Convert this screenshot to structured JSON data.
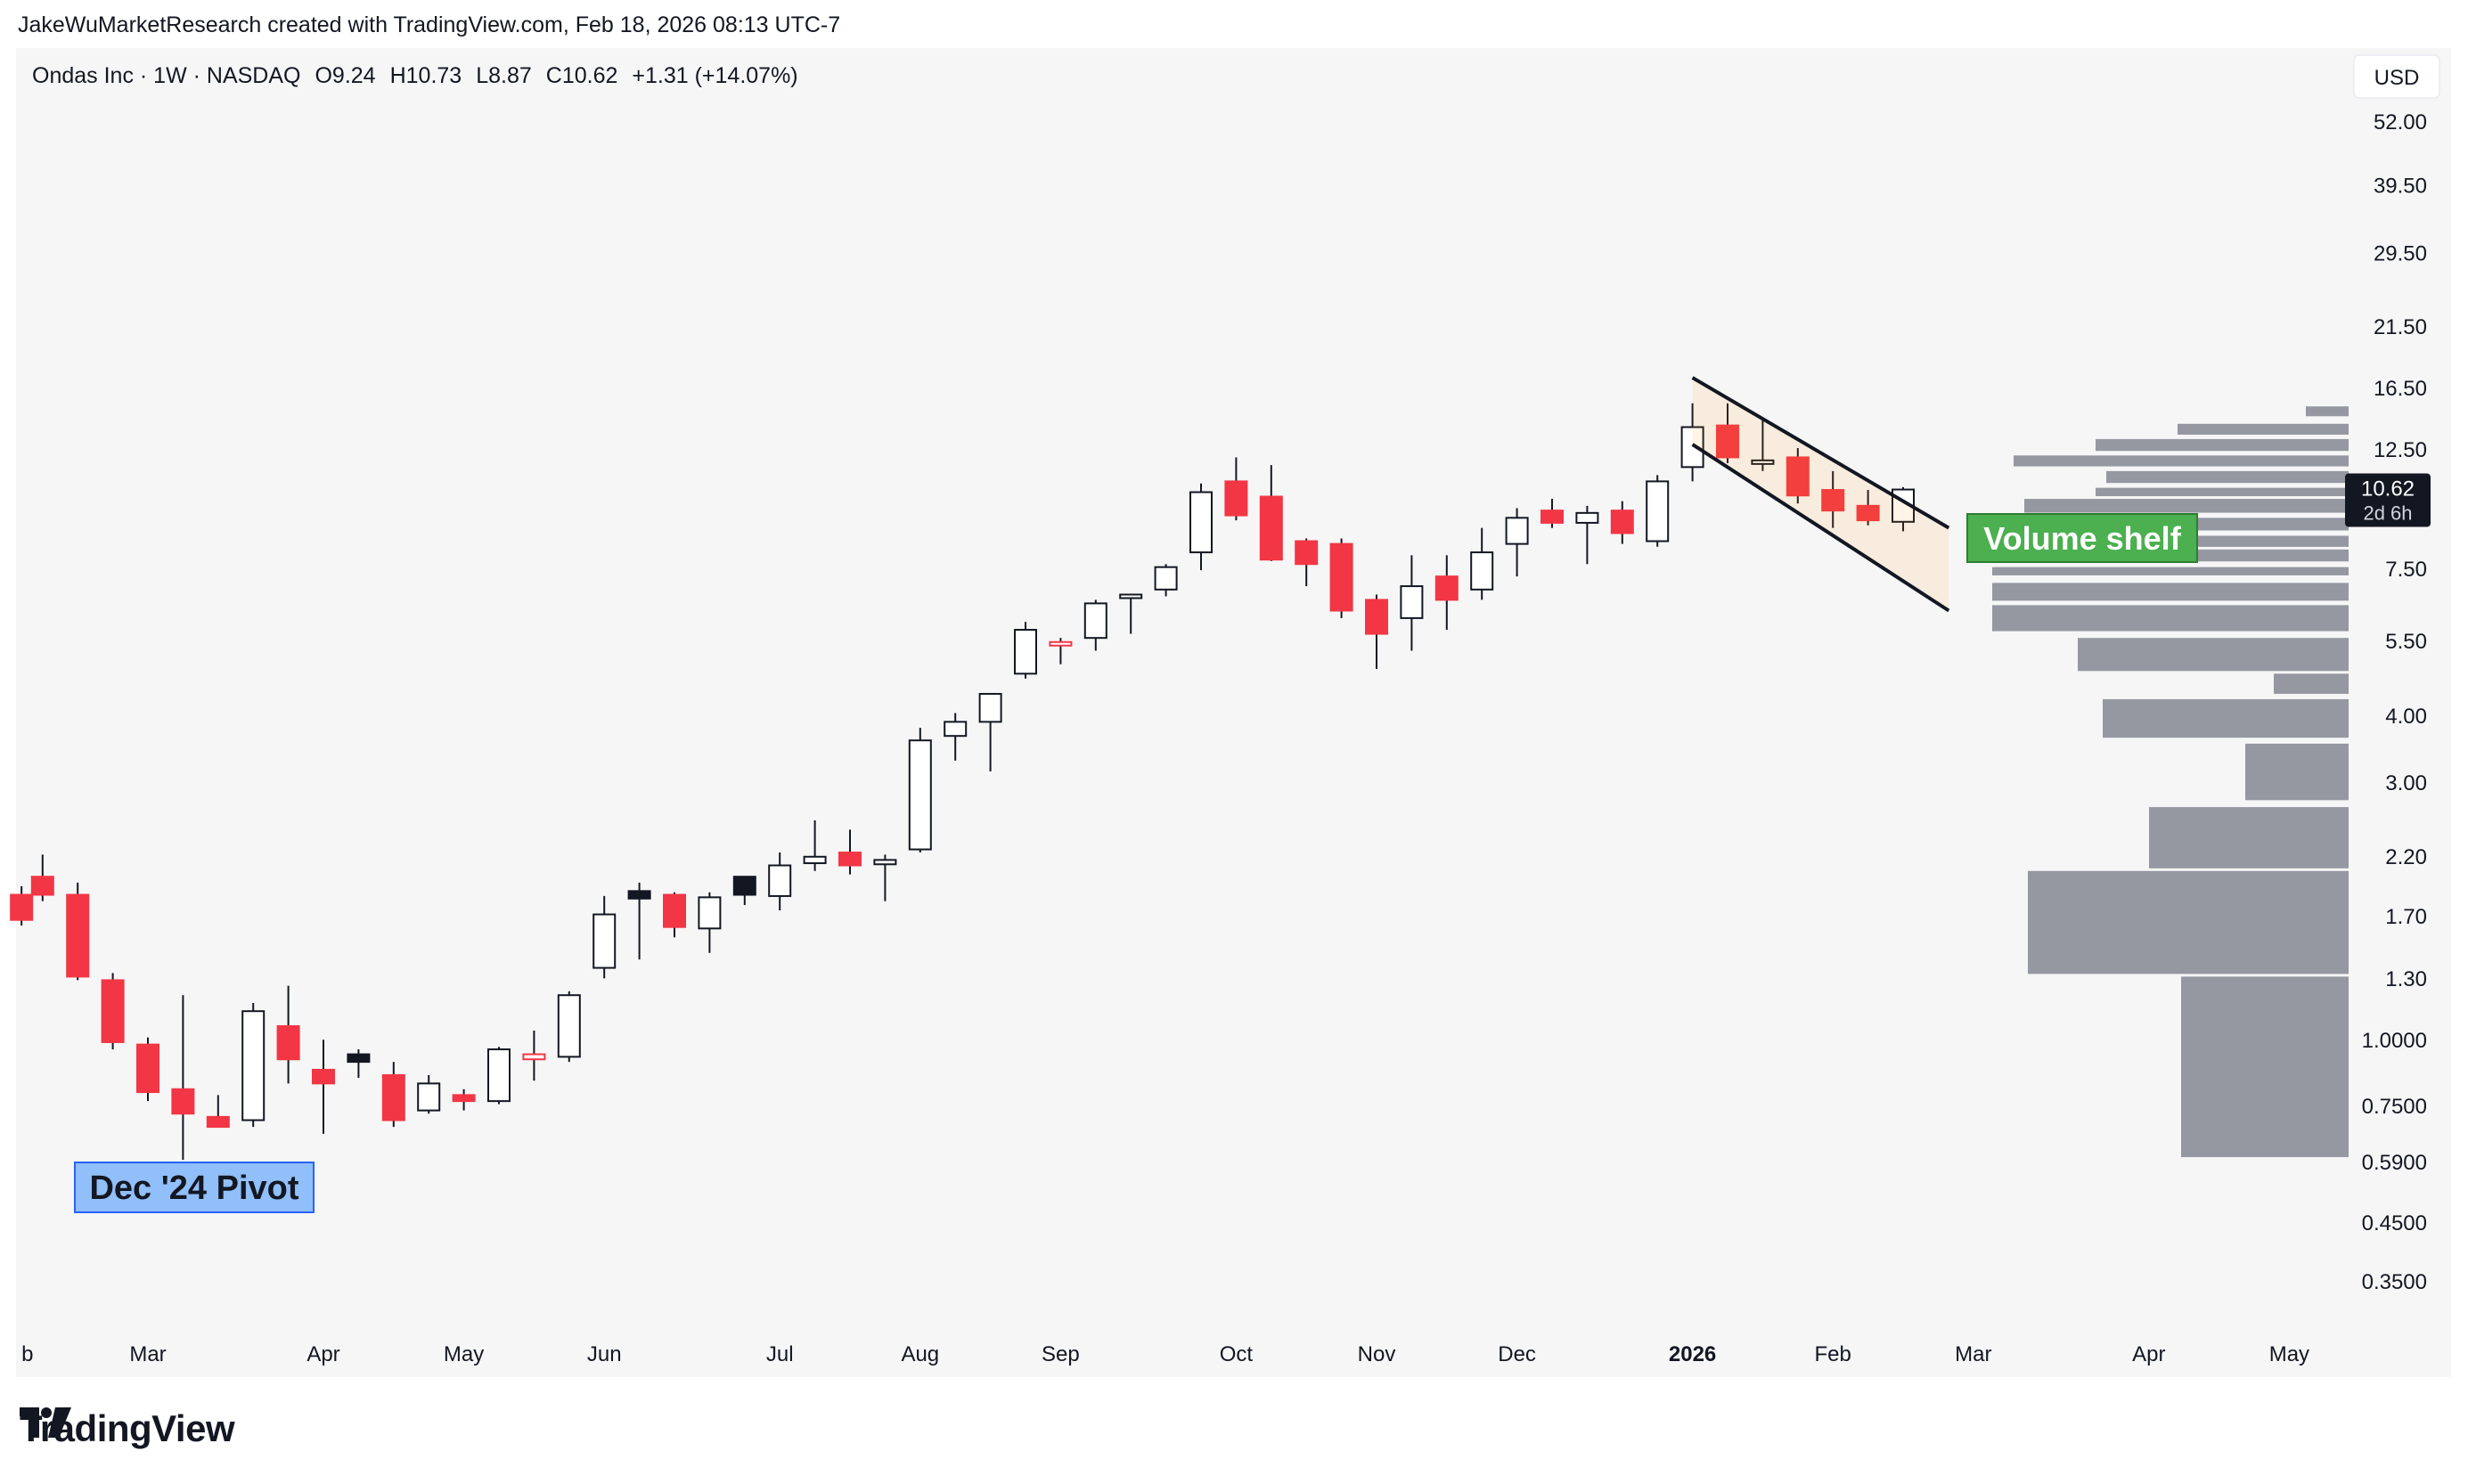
{
  "credit": "JakeWuMarketResearch created with TradingView.com, Feb 18, 2026 08:13 UTC-7",
  "header": {
    "symbol": "Ondas Inc · 1W · NASDAQ",
    "open": "O9.24",
    "high": "H10.73",
    "low": "L8.87",
    "close": "C10.62",
    "change": "+1.31 (+14.07%)"
  },
  "currency_button": "USD",
  "last_price": {
    "value": "10.62",
    "countdown": "2d 6h"
  },
  "annotations": {
    "pivot": "Dec '24 Pivot",
    "shelf": "Volume shelf"
  },
  "brand": "TradingView",
  "colors": {
    "up": "#ffffff",
    "down": "#f23645",
    "wick": "#131722",
    "volume": "#9598a1",
    "pivot_bg": "#90bff9",
    "shelf_bg": "#4caf50"
  },
  "chart_data": {
    "type": "candlestick",
    "title": "Ondas Inc · 1W · NASDAQ",
    "scale": "log",
    "ylim": [
      0.3,
      60
    ],
    "y_ticks": [
      "52.00",
      "39.50",
      "29.50",
      "21.50",
      "16.50",
      "12.50",
      "7.50",
      "5.50",
      "4.00",
      "3.00",
      "2.20",
      "1.70",
      "1.30",
      "1.0000",
      "0.7500",
      "0.5900",
      "0.4500",
      "0.3500"
    ],
    "x_labels": [
      {
        "label": "b",
        "week": -3.6
      },
      {
        "label": "Mar",
        "week": 0
      },
      {
        "label": "Apr",
        "week": 5
      },
      {
        "label": "May",
        "week": 9
      },
      {
        "label": "Jun",
        "week": 13
      },
      {
        "label": "Jul",
        "week": 18
      },
      {
        "label": "Aug",
        "week": 22
      },
      {
        "label": "Sep",
        "week": 26
      },
      {
        "label": "Oct",
        "week": 31
      },
      {
        "label": "Nov",
        "week": 35
      },
      {
        "label": "Dec",
        "week": 39
      },
      {
        "label": "2026",
        "week": 44
      },
      {
        "label": "Feb",
        "week": 48
      },
      {
        "label": "Mar",
        "week": 52
      },
      {
        "label": "Apr",
        "week": 57
      },
      {
        "label": "May",
        "week": 61
      }
    ],
    "candles": [
      {
        "w": -3.6,
        "o": 1.85,
        "h": 1.92,
        "l": 1.62,
        "c": 1.66
      },
      {
        "w": -3,
        "o": 2.0,
        "h": 2.2,
        "l": 1.8,
        "c": 1.85
      },
      {
        "w": -2,
        "o": 1.85,
        "h": 1.95,
        "l": 1.28,
        "c": 1.3
      },
      {
        "w": -1,
        "o": 1.28,
        "h": 1.32,
        "l": 0.95,
        "c": 0.98
      },
      {
        "w": 0,
        "o": 0.97,
        "h": 1.0,
        "l": 0.76,
        "c": 0.79
      },
      {
        "w": 1,
        "o": 0.8,
        "h": 1.2,
        "l": 0.59,
        "c": 0.72
      },
      {
        "w": 2,
        "o": 0.71,
        "h": 0.78,
        "l": 0.68,
        "c": 0.68
      },
      {
        "w": 3,
        "o": 0.7,
        "h": 1.16,
        "l": 0.68,
        "c": 1.12
      },
      {
        "w": 4,
        "o": 1.05,
        "h": 1.25,
        "l": 0.82,
        "c": 0.91
      },
      {
        "w": 5,
        "o": 0.87,
        "h": 0.99,
        "l": 0.66,
        "c": 0.82
      },
      {
        "w": 6,
        "o": 0.9,
        "h": 0.95,
        "l": 0.84,
        "c": 0.93,
        "black": true
      },
      {
        "w": 7,
        "o": 0.85,
        "h": 0.9,
        "l": 0.68,
        "c": 0.7
      },
      {
        "w": 8,
        "o": 0.73,
        "h": 0.85,
        "l": 0.72,
        "c": 0.82
      },
      {
        "w": 9,
        "o": 0.78,
        "h": 0.8,
        "l": 0.73,
        "c": 0.76
      },
      {
        "w": 10,
        "o": 0.76,
        "h": 0.96,
        "l": 0.75,
        "c": 0.95
      },
      {
        "w": 11,
        "o": 0.93,
        "h": 1.03,
        "l": 0.83,
        "c": 0.91,
        "pink": true
      },
      {
        "w": 12,
        "o": 0.92,
        "h": 1.22,
        "l": 0.9,
        "c": 1.2
      },
      {
        "w": 13,
        "o": 1.35,
        "h": 1.84,
        "l": 1.29,
        "c": 1.7
      },
      {
        "w": 14,
        "o": 1.82,
        "h": 1.95,
        "l": 1.4,
        "c": 1.88,
        "black": true
      },
      {
        "w": 15,
        "o": 1.85,
        "h": 1.87,
        "l": 1.54,
        "c": 1.61
      },
      {
        "w": 16,
        "o": 1.6,
        "h": 1.87,
        "l": 1.44,
        "c": 1.83
      },
      {
        "w": 17,
        "o": 1.85,
        "h": 2.0,
        "l": 1.77,
        "c": 2.0,
        "black": true
      },
      {
        "w": 18,
        "o": 1.84,
        "h": 2.22,
        "l": 1.73,
        "c": 2.1
      },
      {
        "w": 19,
        "o": 2.12,
        "h": 2.55,
        "l": 2.05,
        "c": 2.18
      },
      {
        "w": 20,
        "o": 2.22,
        "h": 2.45,
        "l": 2.02,
        "c": 2.1
      },
      {
        "w": 21,
        "o": 2.11,
        "h": 2.2,
        "l": 1.8,
        "c": 2.15
      },
      {
        "w": 22,
        "o": 2.25,
        "h": 3.8,
        "l": 2.22,
        "c": 3.6
      },
      {
        "w": 23,
        "o": 3.67,
        "h": 4.05,
        "l": 3.3,
        "c": 3.9
      },
      {
        "w": 24,
        "o": 3.9,
        "h": 4.4,
        "l": 3.15,
        "c": 4.4
      },
      {
        "w": 25,
        "o": 4.8,
        "h": 6.0,
        "l": 4.7,
        "c": 5.8
      },
      {
        "w": 26,
        "o": 5.5,
        "h": 5.6,
        "l": 5.0,
        "c": 5.42,
        "pink": true
      },
      {
        "w": 27,
        "o": 5.6,
        "h": 6.6,
        "l": 5.3,
        "c": 6.5
      },
      {
        "w": 28,
        "o": 6.7,
        "h": 6.75,
        "l": 5.7,
        "c": 6.7
      },
      {
        "w": 29,
        "o": 6.9,
        "h": 7.7,
        "l": 6.7,
        "c": 7.6
      },
      {
        "w": 30,
        "o": 8.1,
        "h": 10.9,
        "l": 7.5,
        "c": 10.5
      },
      {
        "w": 31,
        "o": 11.0,
        "h": 12.2,
        "l": 9.3,
        "c": 9.5
      },
      {
        "w": 32,
        "o": 10.3,
        "h": 11.8,
        "l": 7.8,
        "c": 7.85
      },
      {
        "w": 33,
        "o": 8.5,
        "h": 8.6,
        "l": 7.0,
        "c": 7.7
      },
      {
        "w": 34,
        "o": 8.4,
        "h": 8.6,
        "l": 6.1,
        "c": 6.3
      },
      {
        "w": 35,
        "o": 6.6,
        "h": 6.75,
        "l": 4.9,
        "c": 5.7
      },
      {
        "w": 36,
        "o": 6.1,
        "h": 8.0,
        "l": 5.3,
        "c": 7.0
      },
      {
        "w": 37,
        "o": 7.3,
        "h": 8.0,
        "l": 5.8,
        "c": 6.6
      },
      {
        "w": 38,
        "o": 6.9,
        "h": 9.0,
        "l": 6.6,
        "c": 8.1
      },
      {
        "w": 39,
        "o": 8.4,
        "h": 9.8,
        "l": 7.3,
        "c": 9.4
      },
      {
        "w": 40,
        "o": 9.7,
        "h": 10.2,
        "l": 9.0,
        "c": 9.2
      },
      {
        "w": 41,
        "o": 9.2,
        "h": 9.9,
        "l": 7.7,
        "c": 9.6
      },
      {
        "w": 42,
        "o": 9.7,
        "h": 10.1,
        "l": 8.4,
        "c": 8.8
      },
      {
        "w": 43,
        "o": 8.5,
        "h": 11.3,
        "l": 8.3,
        "c": 11.0
      },
      {
        "w": 44,
        "o": 11.7,
        "h": 15.4,
        "l": 11.0,
        "c": 13.9
      },
      {
        "w": 45,
        "o": 14.0,
        "h": 15.4,
        "l": 11.9,
        "c": 12.2
      },
      {
        "w": 46,
        "o": 11.9,
        "h": 14.4,
        "l": 11.5,
        "c": 12.0
      },
      {
        "w": 47,
        "o": 12.2,
        "h": 12.7,
        "l": 10.0,
        "c": 10.35
      },
      {
        "w": 48,
        "o": 10.6,
        "h": 11.5,
        "l": 9.0,
        "c": 9.7
      },
      {
        "w": 49,
        "o": 9.9,
        "h": 10.6,
        "l": 9.1,
        "c": 9.3
      },
      {
        "w": 50,
        "o": 9.24,
        "h": 10.73,
        "l": 8.87,
        "c": 10.62
      }
    ],
    "channel": [
      {
        "from": {
          "w": 44,
          "p": 17.2
        },
        "to": {
          "w": 51.3,
          "p": 9.0
        }
      },
      {
        "from": {
          "w": 44,
          "p": 12.9
        },
        "to": {
          "w": 51.3,
          "p": 6.3
        }
      }
    ],
    "volume_profile": [
      {
        "lo": 14.4,
        "hi": 15.2,
        "rel": 0.12
      },
      {
        "lo": 13.3,
        "hi": 14.1,
        "rel": 0.48
      },
      {
        "lo": 12.4,
        "hi": 13.2,
        "rel": 0.71
      },
      {
        "lo": 11.6,
        "hi": 12.3,
        "rel": 0.94
      },
      {
        "lo": 10.8,
        "hi": 11.5,
        "rel": 0.68
      },
      {
        "lo": 10.2,
        "hi": 10.7,
        "rel": 0.71
      },
      {
        "lo": 9.5,
        "hi": 10.2,
        "rel": 0.91
      },
      {
        "lo": 8.8,
        "hi": 9.4,
        "rel": 1.0
      },
      {
        "lo": 8.2,
        "hi": 8.7,
        "rel": 1.0
      },
      {
        "lo": 7.7,
        "hi": 8.2,
        "rel": 1.0
      },
      {
        "lo": 7.25,
        "hi": 7.6,
        "rel": 1.0
      },
      {
        "lo": 6.5,
        "hi": 7.1,
        "rel": 1.0
      },
      {
        "lo": 5.7,
        "hi": 6.45,
        "rel": 1.0
      },
      {
        "lo": 4.8,
        "hi": 5.6,
        "rel": 0.76
      },
      {
        "lo": 4.35,
        "hi": 4.8,
        "rel": 0.21
      },
      {
        "lo": 3.6,
        "hi": 4.3,
        "rel": 0.69
      },
      {
        "lo": 2.75,
        "hi": 3.55,
        "rel": 0.29
      },
      {
        "lo": 2.05,
        "hi": 2.7,
        "rel": 0.56
      },
      {
        "lo": 1.3,
        "hi": 2.05,
        "rel": 0.9
      },
      {
        "lo": 0.59,
        "hi": 1.3,
        "rel": 0.47
      }
    ]
  }
}
